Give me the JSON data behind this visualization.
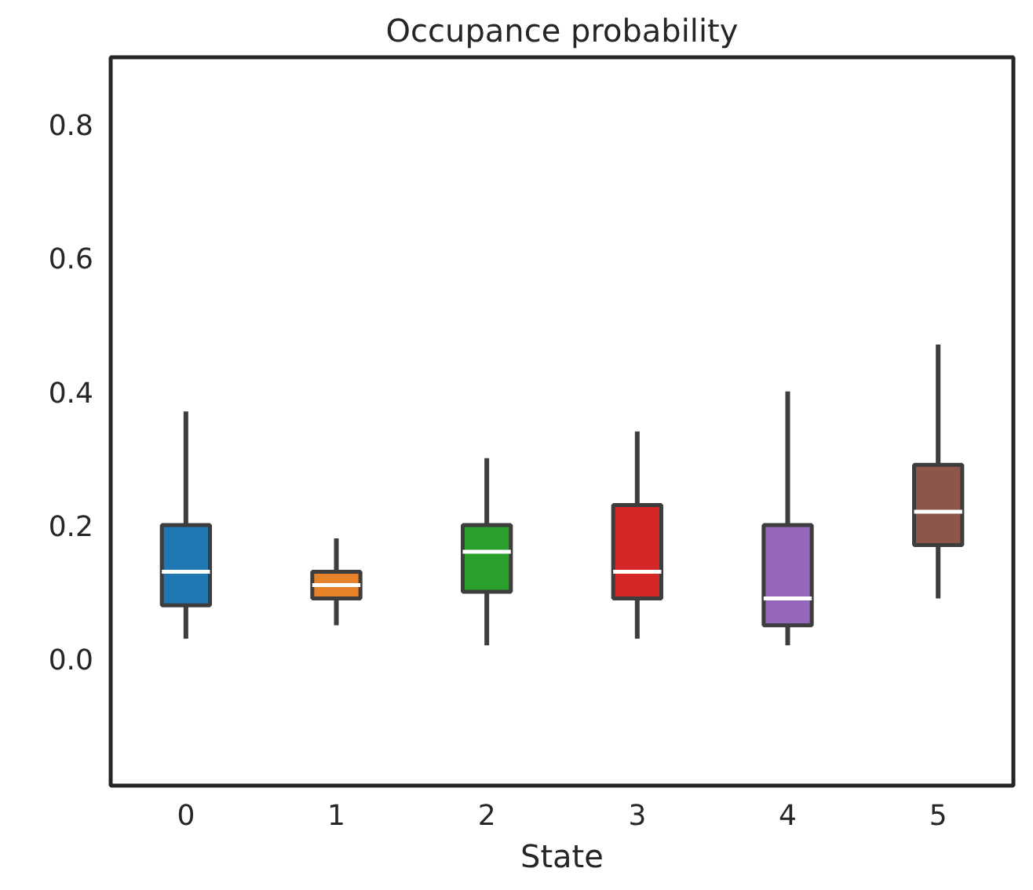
{
  "chart_data": {
    "type": "box",
    "title": "Occupance probability",
    "xlabel": "State",
    "categories": [
      "0",
      "1",
      "2",
      "3",
      "4",
      "5"
    ],
    "colors": [
      "#1f77b4",
      "#e6832a",
      "#2ca02c",
      "#d62728",
      "#9467bd",
      "#8c564b"
    ],
    "boxes": [
      {
        "low": 0.03,
        "q1": 0.08,
        "median": 0.13,
        "q3": 0.2,
        "high": 0.37
      },
      {
        "low": 0.05,
        "q1": 0.09,
        "median": 0.11,
        "q3": 0.13,
        "high": 0.18
      },
      {
        "low": 0.02,
        "q1": 0.1,
        "median": 0.16,
        "q3": 0.2,
        "high": 0.3
      },
      {
        "low": 0.03,
        "q1": 0.09,
        "median": 0.13,
        "q3": 0.23,
        "high": 0.34
      },
      {
        "low": 0.02,
        "q1": 0.05,
        "median": 0.09,
        "q3": 0.2,
        "high": 0.4
      },
      {
        "low": 0.09,
        "q1": 0.17,
        "median": 0.22,
        "q3": 0.29,
        "high": 0.47
      }
    ],
    "ylim": [
      -0.19,
      0.9
    ],
    "yticks": [
      {
        "value": 0,
        "label": "0.0"
      },
      {
        "value": 0.2,
        "label": "0.2"
      },
      {
        "value": 0.4,
        "label": "0.4"
      },
      {
        "value": 0.6,
        "label": "0.6"
      },
      {
        "value": 0.8,
        "label": "0.8"
      }
    ],
    "grid": false
  }
}
